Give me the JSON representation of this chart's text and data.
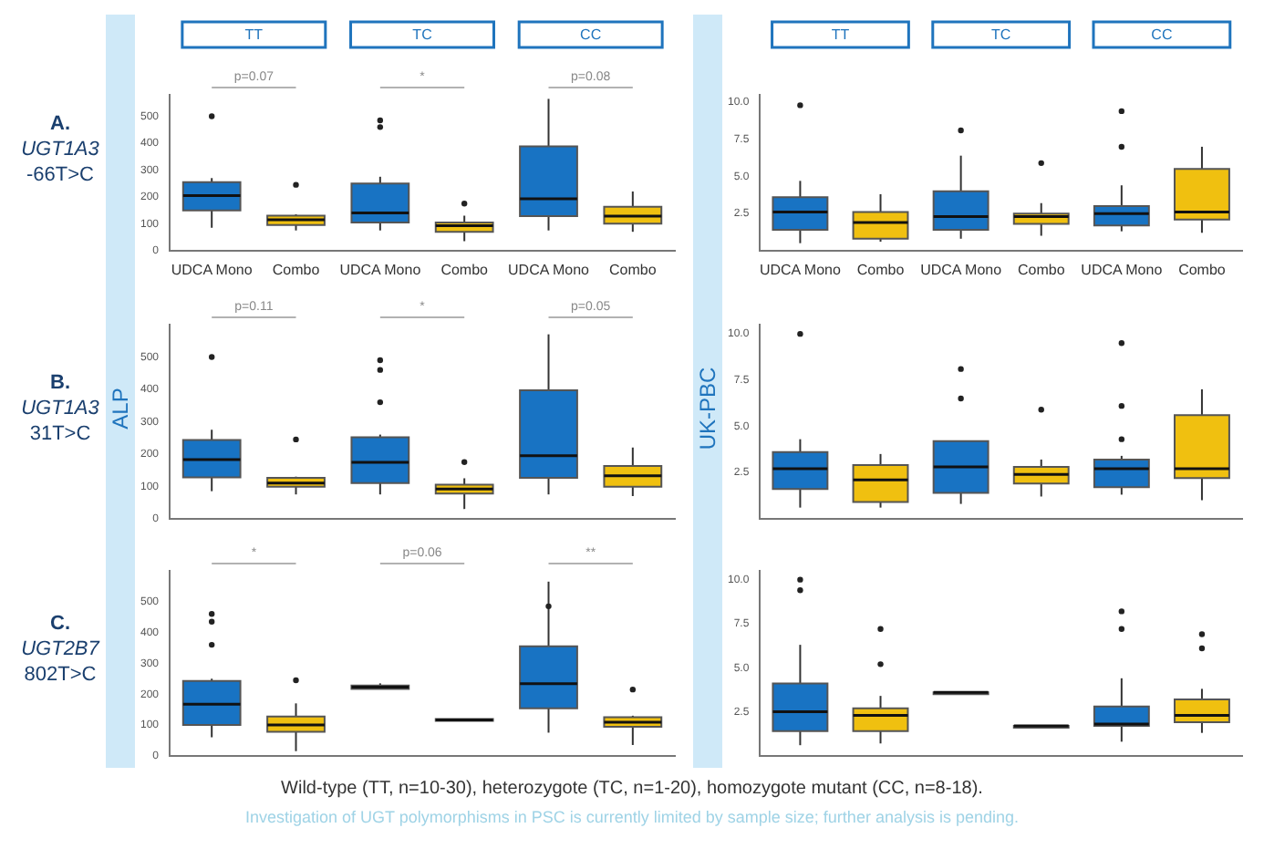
{
  "chart_data": [
    {
      "type": "box",
      "title": "A. UGT1A3 -66T>C",
      "categories": [
        "UDCA Mono",
        "Combo",
        "UDCA Mono",
        "Combo",
        "UDCA Mono",
        "Combo"
      ],
      "colors": [
        "#1873c3",
        "#f0c010",
        "#1873c3",
        "#f0c010",
        "#1873c3",
        "#f0c010"
      ],
      "ylim": [
        0,
        580
      ],
      "yticks": [
        0,
        100,
        200,
        300,
        400,
        500
      ],
      "annotations": [
        "TT",
        "TC",
        "CC",
        "p=0.07",
        "*",
        "p=0.08"
      ],
      "boxes": [
        {
          "low": 85,
          "q1": 150,
          "median": 205,
          "q3": 255,
          "high": 270,
          "outliers": [
            500
          ]
        },
        {
          "low": 75,
          "q1": 95,
          "median": 115,
          "q3": 130,
          "high": 135,
          "outliers": [
            245
          ]
        },
        {
          "low": 75,
          "q1": 105,
          "median": 140,
          "q3": 250,
          "high": 275,
          "outliers": [
            460,
            485
          ]
        },
        {
          "low": 35,
          "q1": 70,
          "median": 93,
          "q3": 105,
          "high": 130,
          "outliers": [
            175
          ]
        },
        {
          "low": 75,
          "q1": 128,
          "median": 193,
          "q3": 388,
          "high": 565
        },
        {
          "low": 70,
          "q1": 100,
          "median": 128,
          "q3": 163,
          "high": 220
        }
      ]
    },
    {
      "type": "box",
      "categories": [
        "UDCA Mono",
        "Combo",
        "UDCA Mono",
        "Combo",
        "UDCA Mono",
        "Combo"
      ],
      "colors": [
        "#1873c3",
        "#f0c010",
        "#1873c3",
        "#f0c010",
        "#1873c3",
        "#f0c010"
      ],
      "ylim": [
        0,
        10.5
      ],
      "yticks": [
        {
          "value": 2.5,
          "label": "2.5"
        },
        {
          "value": 5,
          "label": "5.0"
        },
        {
          "value": 7.5,
          "label": "7.5"
        },
        {
          "value": 10,
          "label": "10.0"
        }
      ],
      "annotations": [
        "TT",
        "TC",
        "CC"
      ],
      "boxes": [
        {
          "low": 0.5,
          "q1": 1.4,
          "median": 2.6,
          "q3": 3.6,
          "high": 4.7,
          "outliers": [
            9.8
          ]
        },
        {
          "low": 0.6,
          "q1": 0.8,
          "median": 1.9,
          "q3": 2.6,
          "high": 3.8
        },
        {
          "low": 0.8,
          "q1": 1.4,
          "median": 2.3,
          "q3": 4.0,
          "high": 6.4,
          "outliers": [
            8.1
          ]
        },
        {
          "low": 1.0,
          "q1": 1.8,
          "median": 2.3,
          "q3": 2.5,
          "high": 3.2,
          "outliers": [
            5.9
          ]
        },
        {
          "low": 1.3,
          "q1": 1.7,
          "median": 2.5,
          "q3": 3.0,
          "high": 4.4,
          "outliers": [
            7.0,
            9.4
          ]
        },
        {
          "low": 1.2,
          "q1": 2.1,
          "median": 2.6,
          "q3": 5.5,
          "high": 7.0
        }
      ]
    },
    {
      "type": "box",
      "title": "B. UGT1A3 31T>C",
      "ylabel": "ALP",
      "categories": [
        null,
        null,
        null,
        null,
        null,
        null
      ],
      "colors": [
        "#1873c3",
        "#f0c010",
        "#1873c3",
        "#f0c010",
        "#1873c3",
        "#f0c010"
      ],
      "ylim": [
        0,
        600
      ],
      "yticks": [
        0,
        100,
        200,
        300,
        400,
        500
      ],
      "tick_labels": "y",
      "annotations": [
        "p=0.11",
        "*",
        "p=0.05"
      ],
      "boxes": [
        {
          "low": 85,
          "q1": 128,
          "median": 183,
          "q3": 243,
          "high": 275,
          "outliers": [
            500
          ]
        },
        {
          "low": 75,
          "q1": 99,
          "median": 110,
          "q3": 126,
          "high": 130,
          "outliers": [
            245
          ]
        },
        {
          "low": 75,
          "q1": 110,
          "median": 174,
          "q3": 252,
          "high": 260,
          "outliers": [
            360,
            460,
            490
          ]
        },
        {
          "low": 30,
          "q1": 78,
          "median": 92,
          "q3": 105,
          "high": 125,
          "outliers": [
            175
          ]
        },
        {
          "low": 75,
          "q1": 126,
          "median": 195,
          "q3": 397,
          "high": 570
        },
        {
          "low": 70,
          "q1": 99,
          "median": 133,
          "q3": 163,
          "high": 220
        }
      ]
    },
    {
      "type": "box",
      "ylabel": "UK-PBC",
      "categories": [
        null,
        null,
        null,
        null,
        null,
        null
      ],
      "colors": [
        "#1873c3",
        "#f0c010",
        "#1873c3",
        "#f0c010",
        "#1873c3",
        "#f0c010"
      ],
      "ylim": [
        0,
        10.5
      ],
      "yticks": [
        {
          "value": 2.5,
          "label": "2.5"
        },
        {
          "value": 5,
          "label": "5.0"
        },
        {
          "value": 7.5,
          "label": "7.5"
        },
        {
          "value": 10,
          "label": "10.0"
        }
      ],
      "tick_labels": "y",
      "boxes": [
        {
          "low": 0.6,
          "q1": 1.6,
          "median": 2.7,
          "q3": 3.6,
          "high": 4.3,
          "outliers": [
            10.0
          ]
        },
        {
          "low": 0.6,
          "q1": 0.9,
          "median": 2.1,
          "q3": 2.9,
          "high": 3.5
        },
        {
          "low": 0.8,
          "q1": 1.4,
          "median": 2.8,
          "q3": 4.2,
          "high": 4.2,
          "outliers": [
            6.5,
            8.1
          ]
        },
        {
          "low": 1.2,
          "q1": 1.9,
          "median": 2.4,
          "q3": 2.8,
          "high": 3.2,
          "outliers": [
            5.9
          ]
        },
        {
          "low": 1.3,
          "q1": 1.7,
          "median": 2.7,
          "q3": 3.2,
          "high": 3.4,
          "outliers": [
            4.3,
            6.1,
            9.5
          ]
        },
        {
          "low": 1.0,
          "q1": 2.2,
          "median": 2.7,
          "q3": 5.6,
          "high": 7.0
        }
      ]
    },
    {
      "type": "box",
      "title": "C. UGT2B7 802T>C",
      "categories": [
        null,
        null,
        null,
        null,
        null,
        null
      ],
      "colors": [
        "#1873c3",
        "#f0c010",
        "#1873c3",
        "#f0c010",
        "#1873c3",
        "#f0c010"
      ],
      "ylim": [
        0,
        600
      ],
      "yticks": [
        0,
        100,
        200,
        300,
        400,
        500
      ],
      "tick_labels": "y",
      "annotations": [
        "*",
        "p=0.06",
        "**"
      ],
      "boxes": [
        {
          "low": 60,
          "q1": 100,
          "median": 167,
          "q3": 243,
          "high": 250,
          "outliers": [
            360,
            435,
            460
          ]
        },
        {
          "low": 15,
          "q1": 78,
          "median": 100,
          "q3": 127,
          "high": 170,
          "outliers": [
            245
          ]
        },
        {
          "low": 217,
          "q1": 217,
          "median": 223,
          "q3": 228,
          "high": 235
        },
        {
          "low": 113,
          "q1": 113,
          "median": 116,
          "q3": 119,
          "high": 119
        },
        {
          "low": 75,
          "q1": 154,
          "median": 234,
          "q3": 355,
          "high": 565,
          "outliers": [
            485
          ]
        },
        {
          "low": 35,
          "q1": 94,
          "median": 109,
          "q3": 125,
          "high": 130,
          "outliers": [
            215
          ]
        }
      ]
    },
    {
      "type": "box",
      "categories": [
        null,
        null,
        null,
        null,
        null,
        null
      ],
      "colors": [
        "#1873c3",
        "#f0c010",
        "#1873c3",
        "#f0c010",
        "#1873c3",
        "#f0c010"
      ],
      "ylim": [
        0,
        10.5
      ],
      "yticks": [
        {
          "value": 2.5,
          "label": "2.5"
        },
        {
          "value": 5,
          "label": "5.0"
        },
        {
          "value": 7.5,
          "label": "7.5"
        },
        {
          "value": 10,
          "label": "10.0"
        }
      ],
      "tick_labels": "y",
      "annotations": [
        "Wild-type (TT, n=10-30), heterozygote (TC, n=1-20), homozygote mutant (CC, n=8-18).",
        "Investigation of UGT polymorphisms in PSC is currently limited by sample size; further analysis is pending."
      ],
      "boxes": [
        {
          "low": 0.6,
          "q1": 1.4,
          "median": 2.5,
          "q3": 4.1,
          "high": 6.3,
          "outliers": [
            9.4,
            10.0
          ]
        },
        {
          "low": 0.7,
          "q1": 1.4,
          "median": 2.3,
          "q3": 2.7,
          "high": 3.4,
          "outliers": [
            5.2,
            7.2
          ]
        },
        {
          "low": 3.6,
          "q1": 3.6,
          "median": 3.6,
          "q3": 3.6,
          "high": 3.6
        },
        {
          "low": 1.7,
          "q1": 1.7,
          "median": 1.7,
          "q3": 1.7,
          "high": 1.7
        },
        {
          "low": 0.8,
          "q1": 1.7,
          "median": 1.8,
          "q3": 2.8,
          "high": 4.4,
          "outliers": [
            7.2,
            8.2
          ]
        },
        {
          "low": 1.3,
          "q1": 1.9,
          "median": 2.3,
          "q3": 3.2,
          "high": 3.8,
          "outliers": [
            6.1,
            6.9
          ]
        }
      ]
    }
  ]
}
